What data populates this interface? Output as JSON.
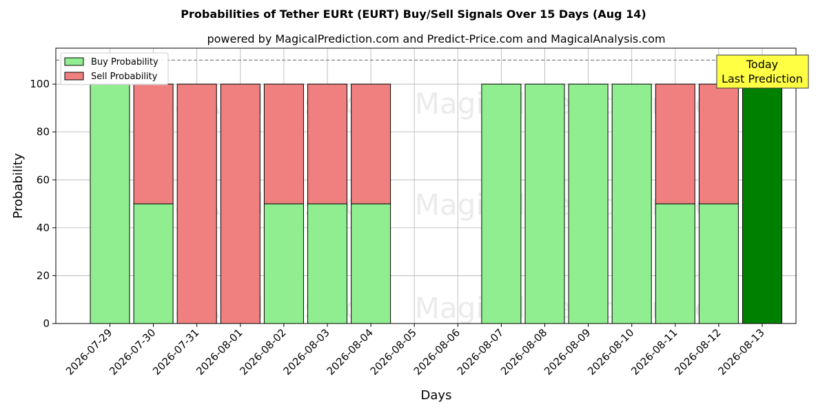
{
  "chart_data": {
    "type": "bar",
    "title": "Probabilities of Tether EURt (EURT) Buy/Sell Signals Over 15 Days (Aug 14)",
    "subtitle": "powered by MagicalPrediction.com and Predict-Price.com and MagicalAnalysis.com",
    "xlabel": "Days",
    "ylabel": "Probability",
    "ylim": [
      0,
      115
    ],
    "yticks": [
      0,
      20,
      40,
      60,
      80,
      100
    ],
    "grid": true,
    "stacked": true,
    "legend_position": "top-left",
    "categories": [
      "2026-07-29",
      "2026-07-30",
      "2026-07-31",
      "2026-08-01",
      "2026-08-02",
      "2026-08-03",
      "2026-08-04",
      "2026-08-05",
      "2026-08-06",
      "2026-08-07",
      "2026-08-08",
      "2026-08-09",
      "2026-08-10",
      "2026-08-11",
      "2026-08-12",
      "2026-08-13"
    ],
    "series": [
      {
        "name": "Buy Probability",
        "color": "#90ee90",
        "values": [
          100,
          50,
          0,
          0,
          50,
          50,
          50,
          0,
          0,
          100,
          100,
          100,
          100,
          50,
          50,
          100
        ]
      },
      {
        "name": "Sell Probability",
        "color": "#f08080",
        "values": [
          0,
          50,
          100,
          100,
          50,
          50,
          50,
          0,
          0,
          0,
          0,
          0,
          0,
          50,
          50,
          0
        ]
      }
    ],
    "highlight": {
      "index": 15,
      "color": "#008000"
    },
    "reference_line": {
      "y": 110,
      "style": "dashed",
      "color": "#808080"
    },
    "annotation": {
      "lines": [
        "Today",
        "Last Prediction"
      ],
      "color": "#ffff44"
    },
    "watermarks": [
      "MagicalAnalysis.com",
      "MagicalPrediction.com"
    ]
  }
}
